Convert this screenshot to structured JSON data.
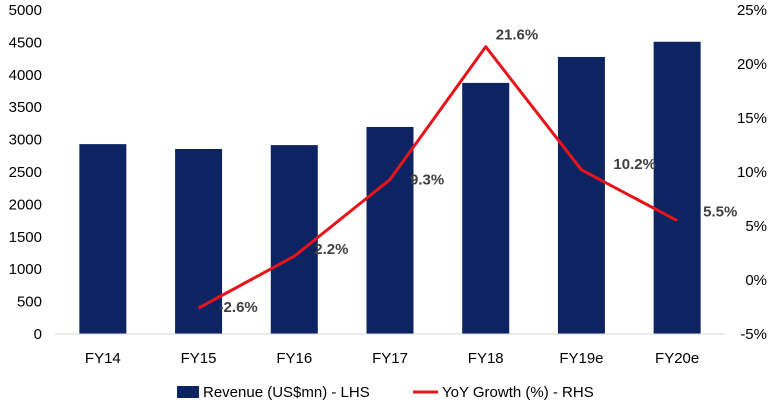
{
  "chart_data": {
    "type": "bar",
    "categories": [
      "FY14",
      "FY15",
      "FY16",
      "FY17",
      "FY18",
      "FY19e",
      "FY20e"
    ],
    "series": [
      {
        "name": "Revenue (US$mn) - LHS",
        "type": "bar",
        "axis": "left",
        "color": "#0c2461",
        "values": [
          2930,
          2855,
          2915,
          3195,
          3875,
          4275,
          4510
        ]
      },
      {
        "name": "YoY Growth (%) - RHS",
        "type": "line",
        "axis": "right",
        "color": "#e8141a",
        "values": [
          null,
          -2.6,
          2.2,
          9.3,
          21.6,
          10.2,
          5.5
        ],
        "labels": [
          null,
          "-2.6%",
          "2.2%",
          "9.3%",
          "21.6%",
          "10.2%",
          "5.5%"
        ]
      }
    ],
    "left_axis": {
      "ylim": [
        0,
        5000
      ],
      "ticks": [
        "0",
        "500",
        "1000",
        "1500",
        "2000",
        "2500",
        "3000",
        "3500",
        "4000",
        "4500",
        "5000"
      ]
    },
    "right_axis": {
      "ylim": [
        -5,
        25
      ],
      "ticks": [
        "-5%",
        "0%",
        "5%",
        "10%",
        "15%",
        "20%",
        "25%"
      ]
    },
    "grid": false,
    "legend": "bottom",
    "title": "",
    "xlabel": "",
    "ylabel": ""
  }
}
